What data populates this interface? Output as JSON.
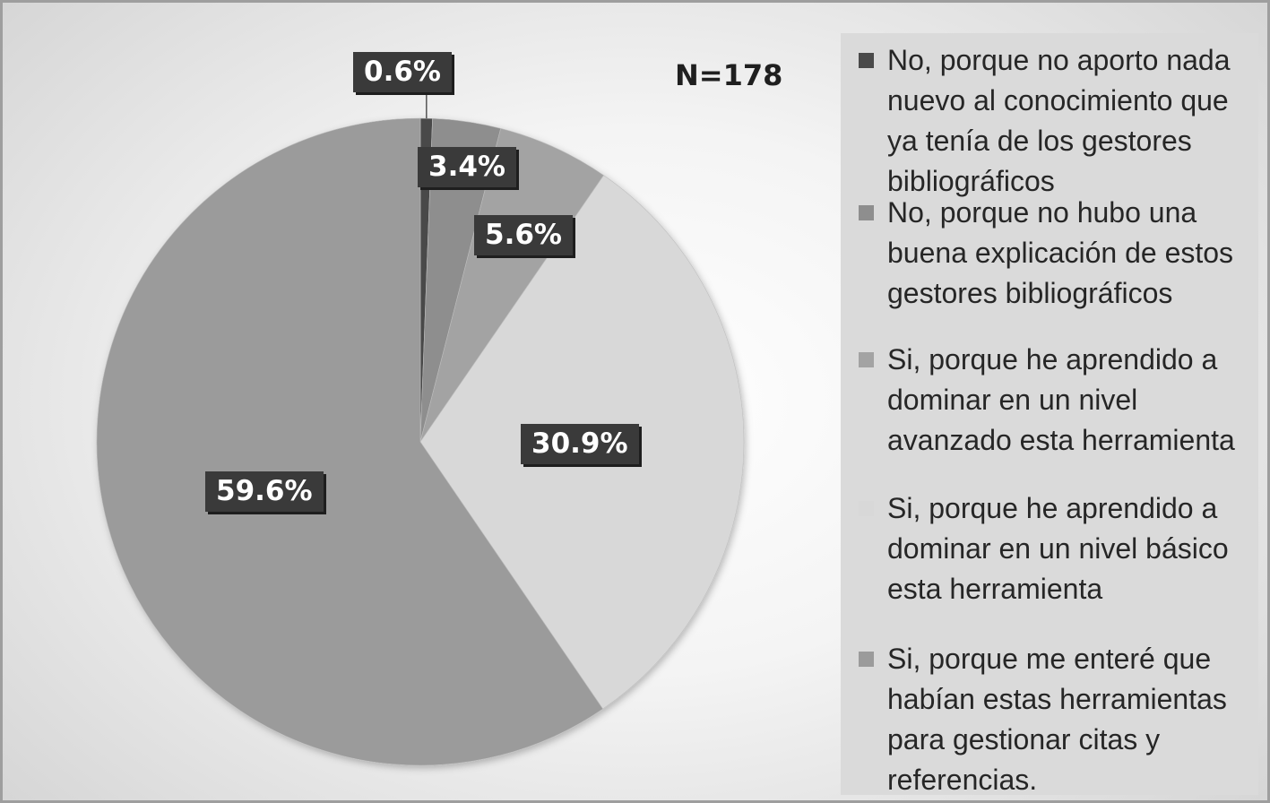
{
  "chart_data": {
    "type": "pie",
    "title": "",
    "annotation": "N=178",
    "legend_position": "right",
    "categories": [
      "No, porque no aporto nada nuevo al conocimiento que ya tenía de los gestores bibliográficos",
      "No, porque no hubo una buena explicación de estos gestores bibliográficos",
      "Si, porque he aprendido a dominar en un nivel avanzado esta herramienta",
      "Si, porque he aprendido a dominar en un nivel básico esta herramienta",
      "Si, porque me enteré que habían estas herramientas para gestionar citas y referencias."
    ],
    "values": [
      0.6,
      3.4,
      5.6,
      30.9,
      59.6
    ],
    "labels": [
      "0.6%",
      "3.4%",
      "5.6%",
      "30.9%",
      "59.6%"
    ],
    "colors": [
      "#4a4a4a",
      "#8e8e8e",
      "#a3a3a3",
      "#d8d8d8",
      "#9b9b9b"
    ]
  }
}
